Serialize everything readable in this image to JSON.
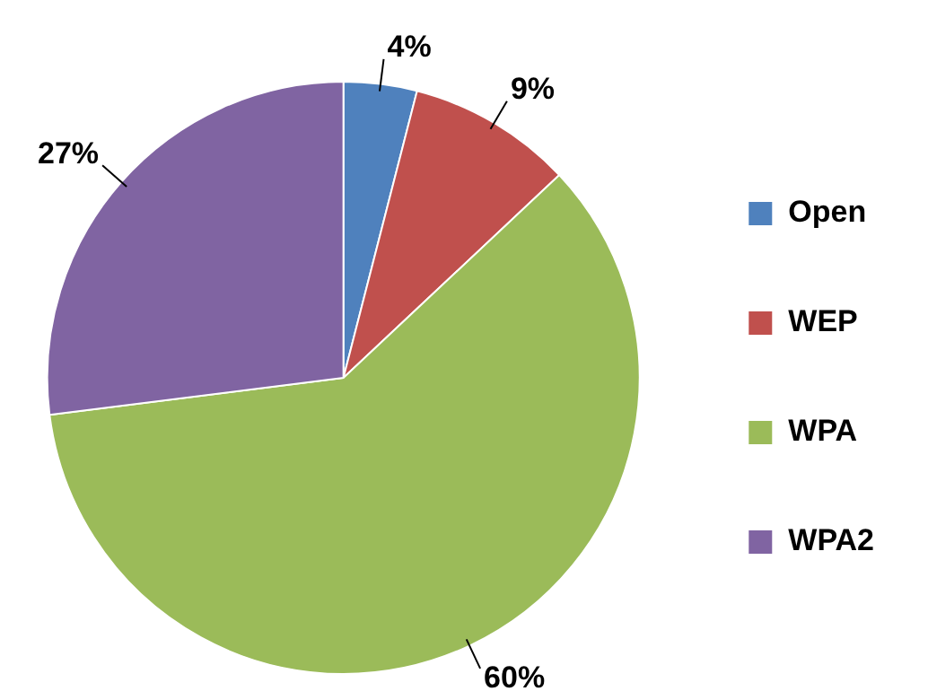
{
  "chart_data": {
    "type": "pie",
    "categories": [
      "Open",
      "WEP",
      "WPA",
      "WPA2"
    ],
    "values": [
      4,
      9,
      60,
      27
    ],
    "colors": [
      "#4f81bd",
      "#c0504d",
      "#9bbb59",
      "#8064a2"
    ],
    "value_labels": [
      "4%",
      "9%",
      "60%",
      "27%"
    ],
    "legend": "right"
  }
}
